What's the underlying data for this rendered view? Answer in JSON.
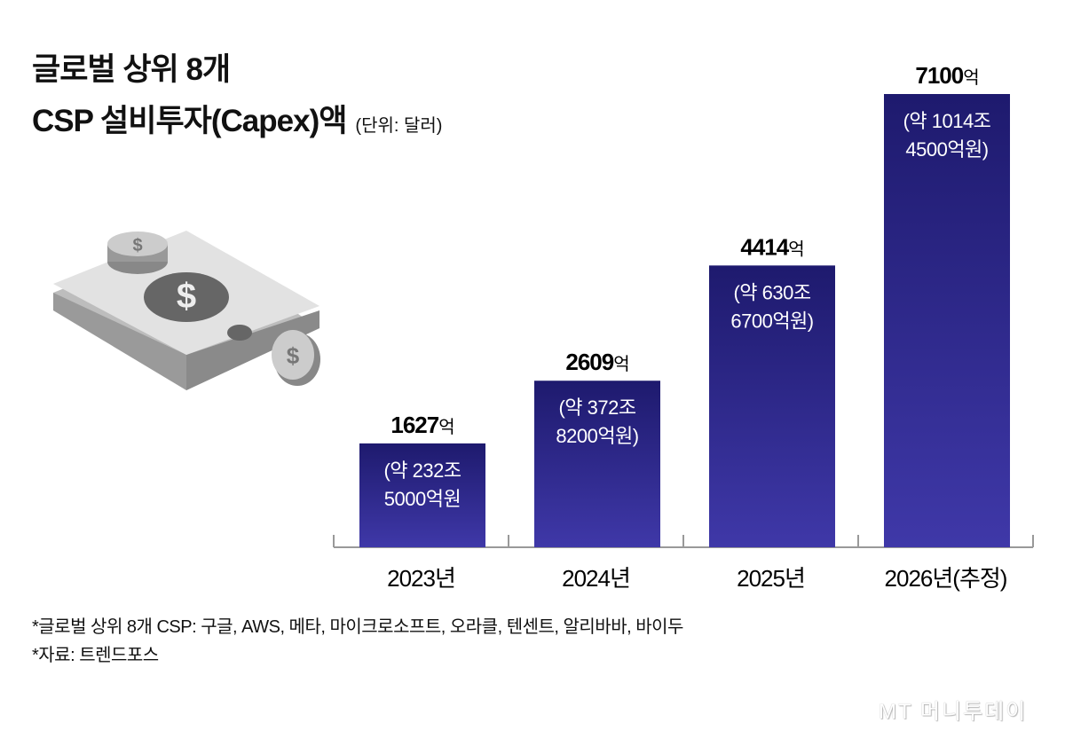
{
  "title_line1": "글로벌 상위 8개",
  "title_line2": "CSP 설비투자(Capex)액",
  "unit": "(단위: 달러)",
  "chart_data": {
    "type": "bar",
    "title": "글로벌 상위 8개 CSP 설비투자(Capex)액",
    "unit": "(단위: 달러)",
    "categories": [
      "2023년",
      "2024년",
      "2025년",
      "2026년(추정)"
    ],
    "values": [
      1627,
      2609,
      4414,
      7100
    ],
    "value_suffix": "억",
    "value_labels": [
      "1627",
      "2609",
      "4414",
      "7100"
    ],
    "sub_labels": [
      [
        "(약 232조",
        "5000억원"
      ],
      [
        "(약 372조",
        "8200억원)"
      ],
      [
        "(약 630조",
        "6700억원)"
      ],
      [
        "(약 1014조",
        "4500억원)"
      ]
    ],
    "bar_color_top": "#1e1a6e",
    "bar_color_bottom": "#3f38a8",
    "ylim": [
      0,
      7100
    ],
    "grid": false
  },
  "notes": [
    "*글로벌 상위 8개 CSP: 구글, AWS, 메타, 마이크로소프트, 오라클, 텐센트, 알리바바, 바이두",
    "*자료: 트렌드포스"
  ],
  "logo": "MT 머니투데이",
  "illustration": "money-icon"
}
